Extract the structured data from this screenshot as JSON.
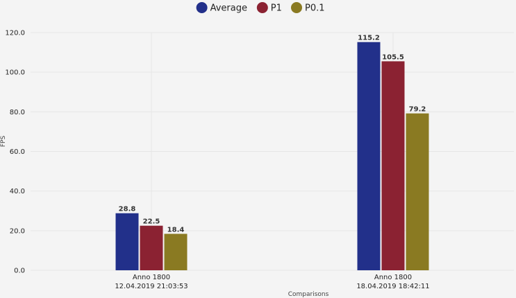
{
  "chart_data": {
    "type": "bar",
    "xlabel": "Comparisons",
    "ylabel": "FPS",
    "ylim": [
      0,
      120
    ],
    "yticks": [
      "0.0",
      "20.0",
      "40.0",
      "60.0",
      "80.0",
      "100.0",
      "120.0"
    ],
    "grid": true,
    "legend_position": "top-center",
    "categories": [
      [
        "Anno 1800",
        "12.04.2019 21:03:53"
      ],
      [
        "Anno 1800",
        "18.04.2019 18:42:11"
      ]
    ],
    "series": [
      {
        "name": "Average",
        "color": "#22308a",
        "values": [
          28.8,
          115.2
        ],
        "labels": [
          "28.8",
          "115.2"
        ]
      },
      {
        "name": "P1",
        "color": "#8b2232",
        "values": [
          22.5,
          105.5
        ],
        "labels": [
          "22.5",
          "105.5"
        ]
      },
      {
        "name": "P0.1",
        "color": "#8a7a22",
        "values": [
          18.4,
          79.2
        ],
        "labels": [
          "18.4",
          "79.2"
        ]
      }
    ]
  }
}
